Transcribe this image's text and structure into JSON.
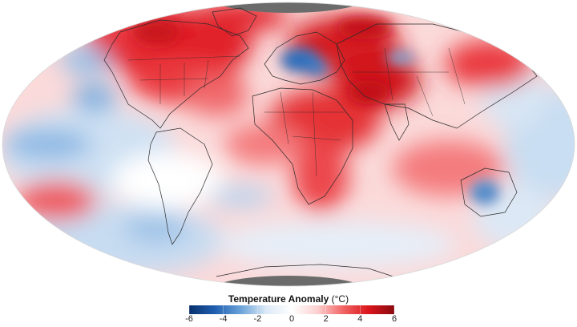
{
  "legend": {
    "title": "Temperature Anomaly",
    "unit": "(°C)",
    "ticks": [
      "-6",
      "-4",
      "-2",
      "0",
      "2",
      "4",
      "6"
    ],
    "min": -6,
    "max": 6,
    "colors": [
      "#08306b",
      "#1f5fb0",
      "#6aa2d8",
      "#dbe9f6",
      "#ffffff",
      "#fcd0d0",
      "#f26565",
      "#d9151b",
      "#8a0a0e"
    ]
  },
  "map": {
    "projection": "Hammer",
    "ocean_base": "#fbdada",
    "no_data": "#6b6b6b",
    "border_color": "#2a2a2a"
  }
}
